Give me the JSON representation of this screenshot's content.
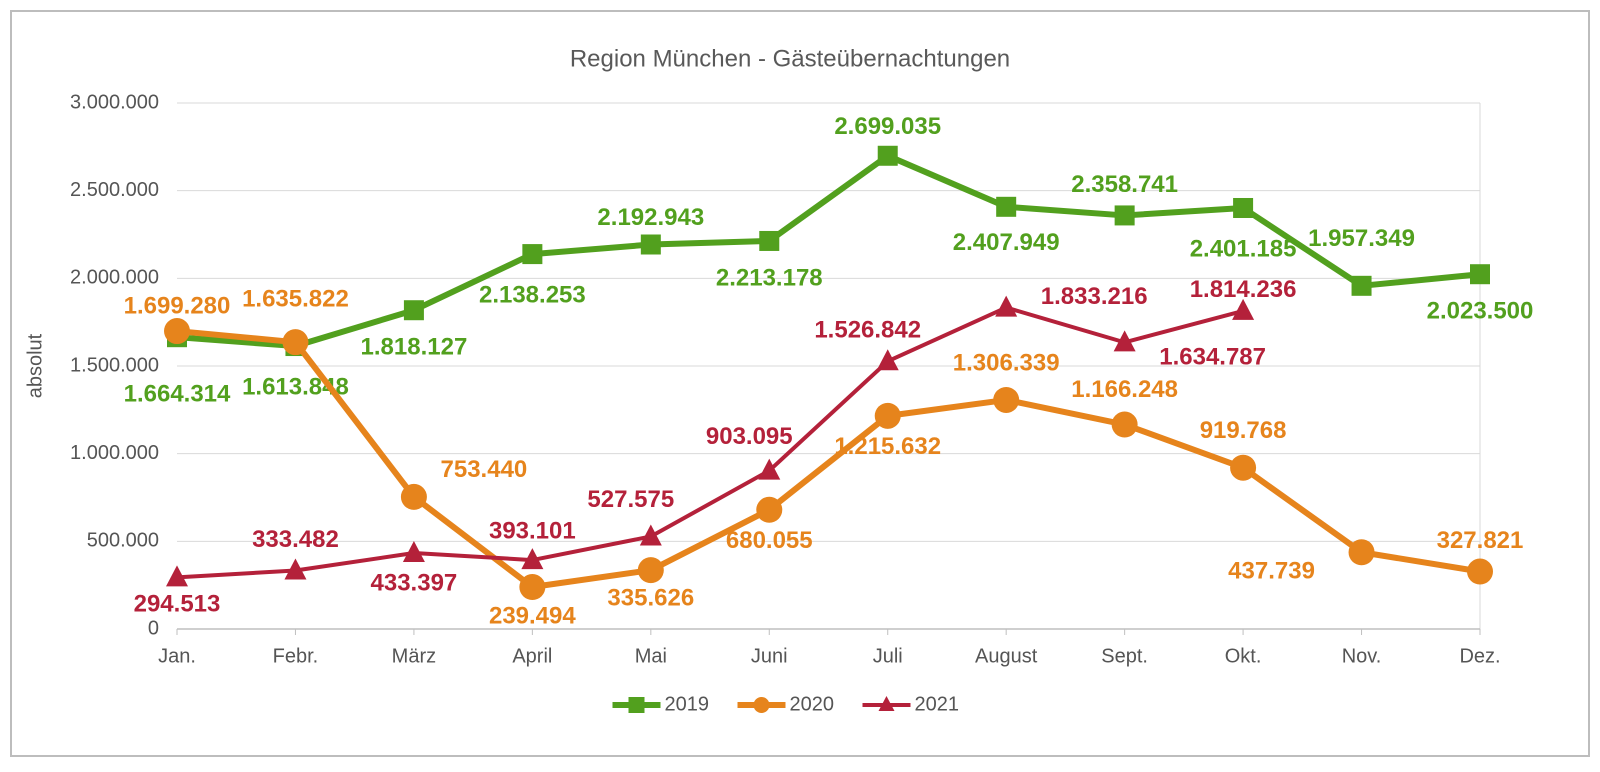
{
  "chart_data": {
    "type": "line",
    "title": "Region München - Gästeübernachtungen",
    "y_label": "absolut",
    "categories": [
      "Jan.",
      "Febr.",
      "März",
      "April",
      "Mai",
      "Juni",
      "Juli",
      "August",
      "Sept.",
      "Okt.",
      "Nov.",
      "Dez."
    ],
    "series": [
      {
        "name": "2019",
        "color": "#52a01e",
        "marker": "square",
        "values": [
          1664314,
          1613848,
          1818127,
          2138253,
          2192943,
          2213178,
          2699035,
          2407949,
          2358741,
          2401185,
          1957349,
          2023500
        ],
        "value_labels": [
          "1.664.314",
          "1.613.848",
          "1.818.127",
          "2.138.253",
          "2.192.943",
          "2.213.178",
          "2.699.035",
          "2.407.949",
          "2.358.741",
          "2.401.185",
          "1.957.349",
          "2.023.500"
        ]
      },
      {
        "name": "2020",
        "color": "#e6841c",
        "marker": "circle",
        "values": [
          1699280,
          1635822,
          753440,
          239494,
          335626,
          680055,
          1215632,
          1306339,
          1166248,
          919768,
          437739,
          327821
        ],
        "value_labels": [
          "1.699.280",
          "1.635.822",
          "753.440",
          "239.494",
          "335.626",
          "680.055",
          "1.215.632",
          "1.306.339",
          "1.166.248",
          "919.768",
          "437.739",
          "327.821"
        ]
      },
      {
        "name": "2021",
        "color": "#b4213a",
        "marker": "triangle",
        "values": [
          294513,
          333482,
          433397,
          393101,
          527575,
          903095,
          1526842,
          1833216,
          1634787,
          1814236,
          null,
          null
        ],
        "value_labels": [
          "294.513",
          "333.482",
          "433.397",
          "393.101",
          "527.575",
          "903.095",
          "1.526.842",
          "1.833.216",
          "1.634.787",
          "1.814.236",
          null,
          null
        ]
      }
    ],
    "ylim": [
      0,
      3000000
    ],
    "yticks": [
      0,
      {
        "value": 500000,
        "label": "500.000"
      },
      {
        "value": 1000000,
        "label": "1.000.000"
      },
      {
        "value": 1500000,
        "label": "1.500.000"
      },
      {
        "value": 2000000,
        "label": "2.000.000"
      },
      {
        "value": 2500000,
        "label": "2.500.000"
      },
      {
        "value": 3000000,
        "label": "3.000.000"
      }
    ],
    "grid": true,
    "legend": "bottom"
  }
}
